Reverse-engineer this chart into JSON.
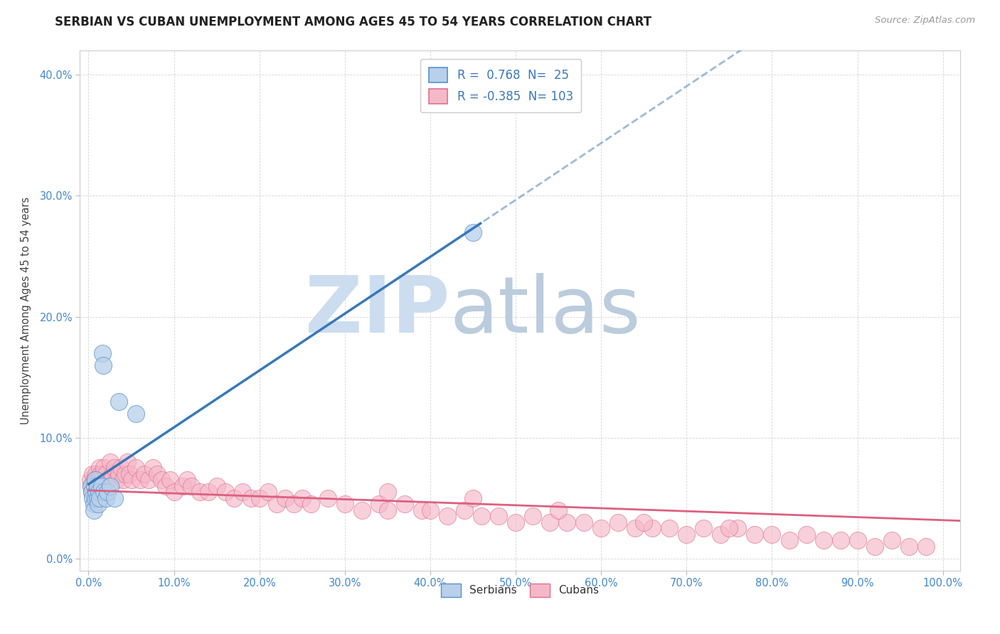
{
  "title": "SERBIAN VS CUBAN UNEMPLOYMENT AMONG AGES 45 TO 54 YEARS CORRELATION CHART",
  "source": "Source: ZipAtlas.com",
  "ylabel": "Unemployment Among Ages 45 to 54 years",
  "xlim": [
    -0.01,
    1.02
  ],
  "ylim": [
    -0.01,
    0.42
  ],
  "xticks": [
    0.0,
    0.1,
    0.2,
    0.3,
    0.4,
    0.5,
    0.6,
    0.7,
    0.8,
    0.9,
    1.0
  ],
  "xtick_labels": [
    "0.0%",
    "10.0%",
    "20.0%",
    "30.0%",
    "40.0%",
    "50.0%",
    "60.0%",
    "70.0%",
    "80.0%",
    "90.0%",
    "100.0%"
  ],
  "yticks": [
    0.0,
    0.1,
    0.2,
    0.3,
    0.4
  ],
  "ytick_labels": [
    "0.0%",
    "10.0%",
    "20.0%",
    "30.0%",
    "40.0%"
  ],
  "serbian_R": 0.768,
  "serbian_N": 25,
  "cuban_R": -0.385,
  "cuban_N": 103,
  "serbian_fill_color": "#b8d0ea",
  "cuban_fill_color": "#f5b8c8",
  "serbian_edge_color": "#5590cc",
  "cuban_edge_color": "#dd7090",
  "serbian_line_color": "#3878bb",
  "cuban_line_color": "#dd6080",
  "watermark_zip_color": "#ccddf0",
  "watermark_atlas_color": "#bbccdd",
  "background_color": "#ffffff",
  "grid_color": "#d0d0d0",
  "title_color": "#222222",
  "axis_label_color": "#444444",
  "tick_color": "#4488cc",
  "source_color": "#999999",
  "legend_text_color": "#222222",
  "legend_value_color": "#3878bb",
  "serbian_x": [
    0.003,
    0.004,
    0.005,
    0.006,
    0.006,
    0.007,
    0.008,
    0.008,
    0.009,
    0.01,
    0.01,
    0.011,
    0.012,
    0.013,
    0.015,
    0.016,
    0.017,
    0.018,
    0.02,
    0.022,
    0.025,
    0.03,
    0.035,
    0.055,
    0.45
  ],
  "serbian_y": [
    0.06,
    0.055,
    0.05,
    0.045,
    0.04,
    0.06,
    0.05,
    0.065,
    0.055,
    0.06,
    0.05,
    0.045,
    0.055,
    0.05,
    0.06,
    0.17,
    0.16,
    0.055,
    0.05,
    0.055,
    0.06,
    0.05,
    0.13,
    0.12,
    0.27
  ],
  "cuban_x": [
    0.002,
    0.003,
    0.004,
    0.005,
    0.005,
    0.006,
    0.006,
    0.007,
    0.008,
    0.008,
    0.009,
    0.009,
    0.01,
    0.01,
    0.011,
    0.012,
    0.013,
    0.014,
    0.015,
    0.016,
    0.018,
    0.02,
    0.022,
    0.025,
    0.028,
    0.03,
    0.033,
    0.035,
    0.038,
    0.04,
    0.043,
    0.045,
    0.048,
    0.05,
    0.055,
    0.06,
    0.065,
    0.07,
    0.075,
    0.08,
    0.085,
    0.09,
    0.095,
    0.1,
    0.11,
    0.115,
    0.12,
    0.13,
    0.14,
    0.15,
    0.16,
    0.17,
    0.18,
    0.19,
    0.2,
    0.21,
    0.22,
    0.23,
    0.24,
    0.25,
    0.26,
    0.28,
    0.3,
    0.32,
    0.34,
    0.35,
    0.37,
    0.39,
    0.4,
    0.42,
    0.44,
    0.46,
    0.48,
    0.5,
    0.52,
    0.54,
    0.56,
    0.58,
    0.6,
    0.62,
    0.64,
    0.66,
    0.68,
    0.7,
    0.72,
    0.74,
    0.76,
    0.78,
    0.8,
    0.82,
    0.84,
    0.86,
    0.88,
    0.9,
    0.92,
    0.94,
    0.96,
    0.98,
    0.35,
    0.45,
    0.55,
    0.65,
    0.75
  ],
  "cuban_y": [
    0.065,
    0.06,
    0.055,
    0.07,
    0.06,
    0.065,
    0.055,
    0.06,
    0.065,
    0.055,
    0.06,
    0.07,
    0.065,
    0.055,
    0.06,
    0.065,
    0.075,
    0.07,
    0.065,
    0.07,
    0.075,
    0.07,
    0.065,
    0.08,
    0.07,
    0.075,
    0.065,
    0.07,
    0.075,
    0.065,
    0.07,
    0.08,
    0.07,
    0.065,
    0.075,
    0.065,
    0.07,
    0.065,
    0.075,
    0.07,
    0.065,
    0.06,
    0.065,
    0.055,
    0.06,
    0.065,
    0.06,
    0.055,
    0.055,
    0.06,
    0.055,
    0.05,
    0.055,
    0.05,
    0.05,
    0.055,
    0.045,
    0.05,
    0.045,
    0.05,
    0.045,
    0.05,
    0.045,
    0.04,
    0.045,
    0.04,
    0.045,
    0.04,
    0.04,
    0.035,
    0.04,
    0.035,
    0.035,
    0.03,
    0.035,
    0.03,
    0.03,
    0.03,
    0.025,
    0.03,
    0.025,
    0.025,
    0.025,
    0.02,
    0.025,
    0.02,
    0.025,
    0.02,
    0.02,
    0.015,
    0.02,
    0.015,
    0.015,
    0.015,
    0.01,
    0.015,
    0.01,
    0.01,
    0.055,
    0.05,
    0.04,
    0.03,
    0.025
  ]
}
